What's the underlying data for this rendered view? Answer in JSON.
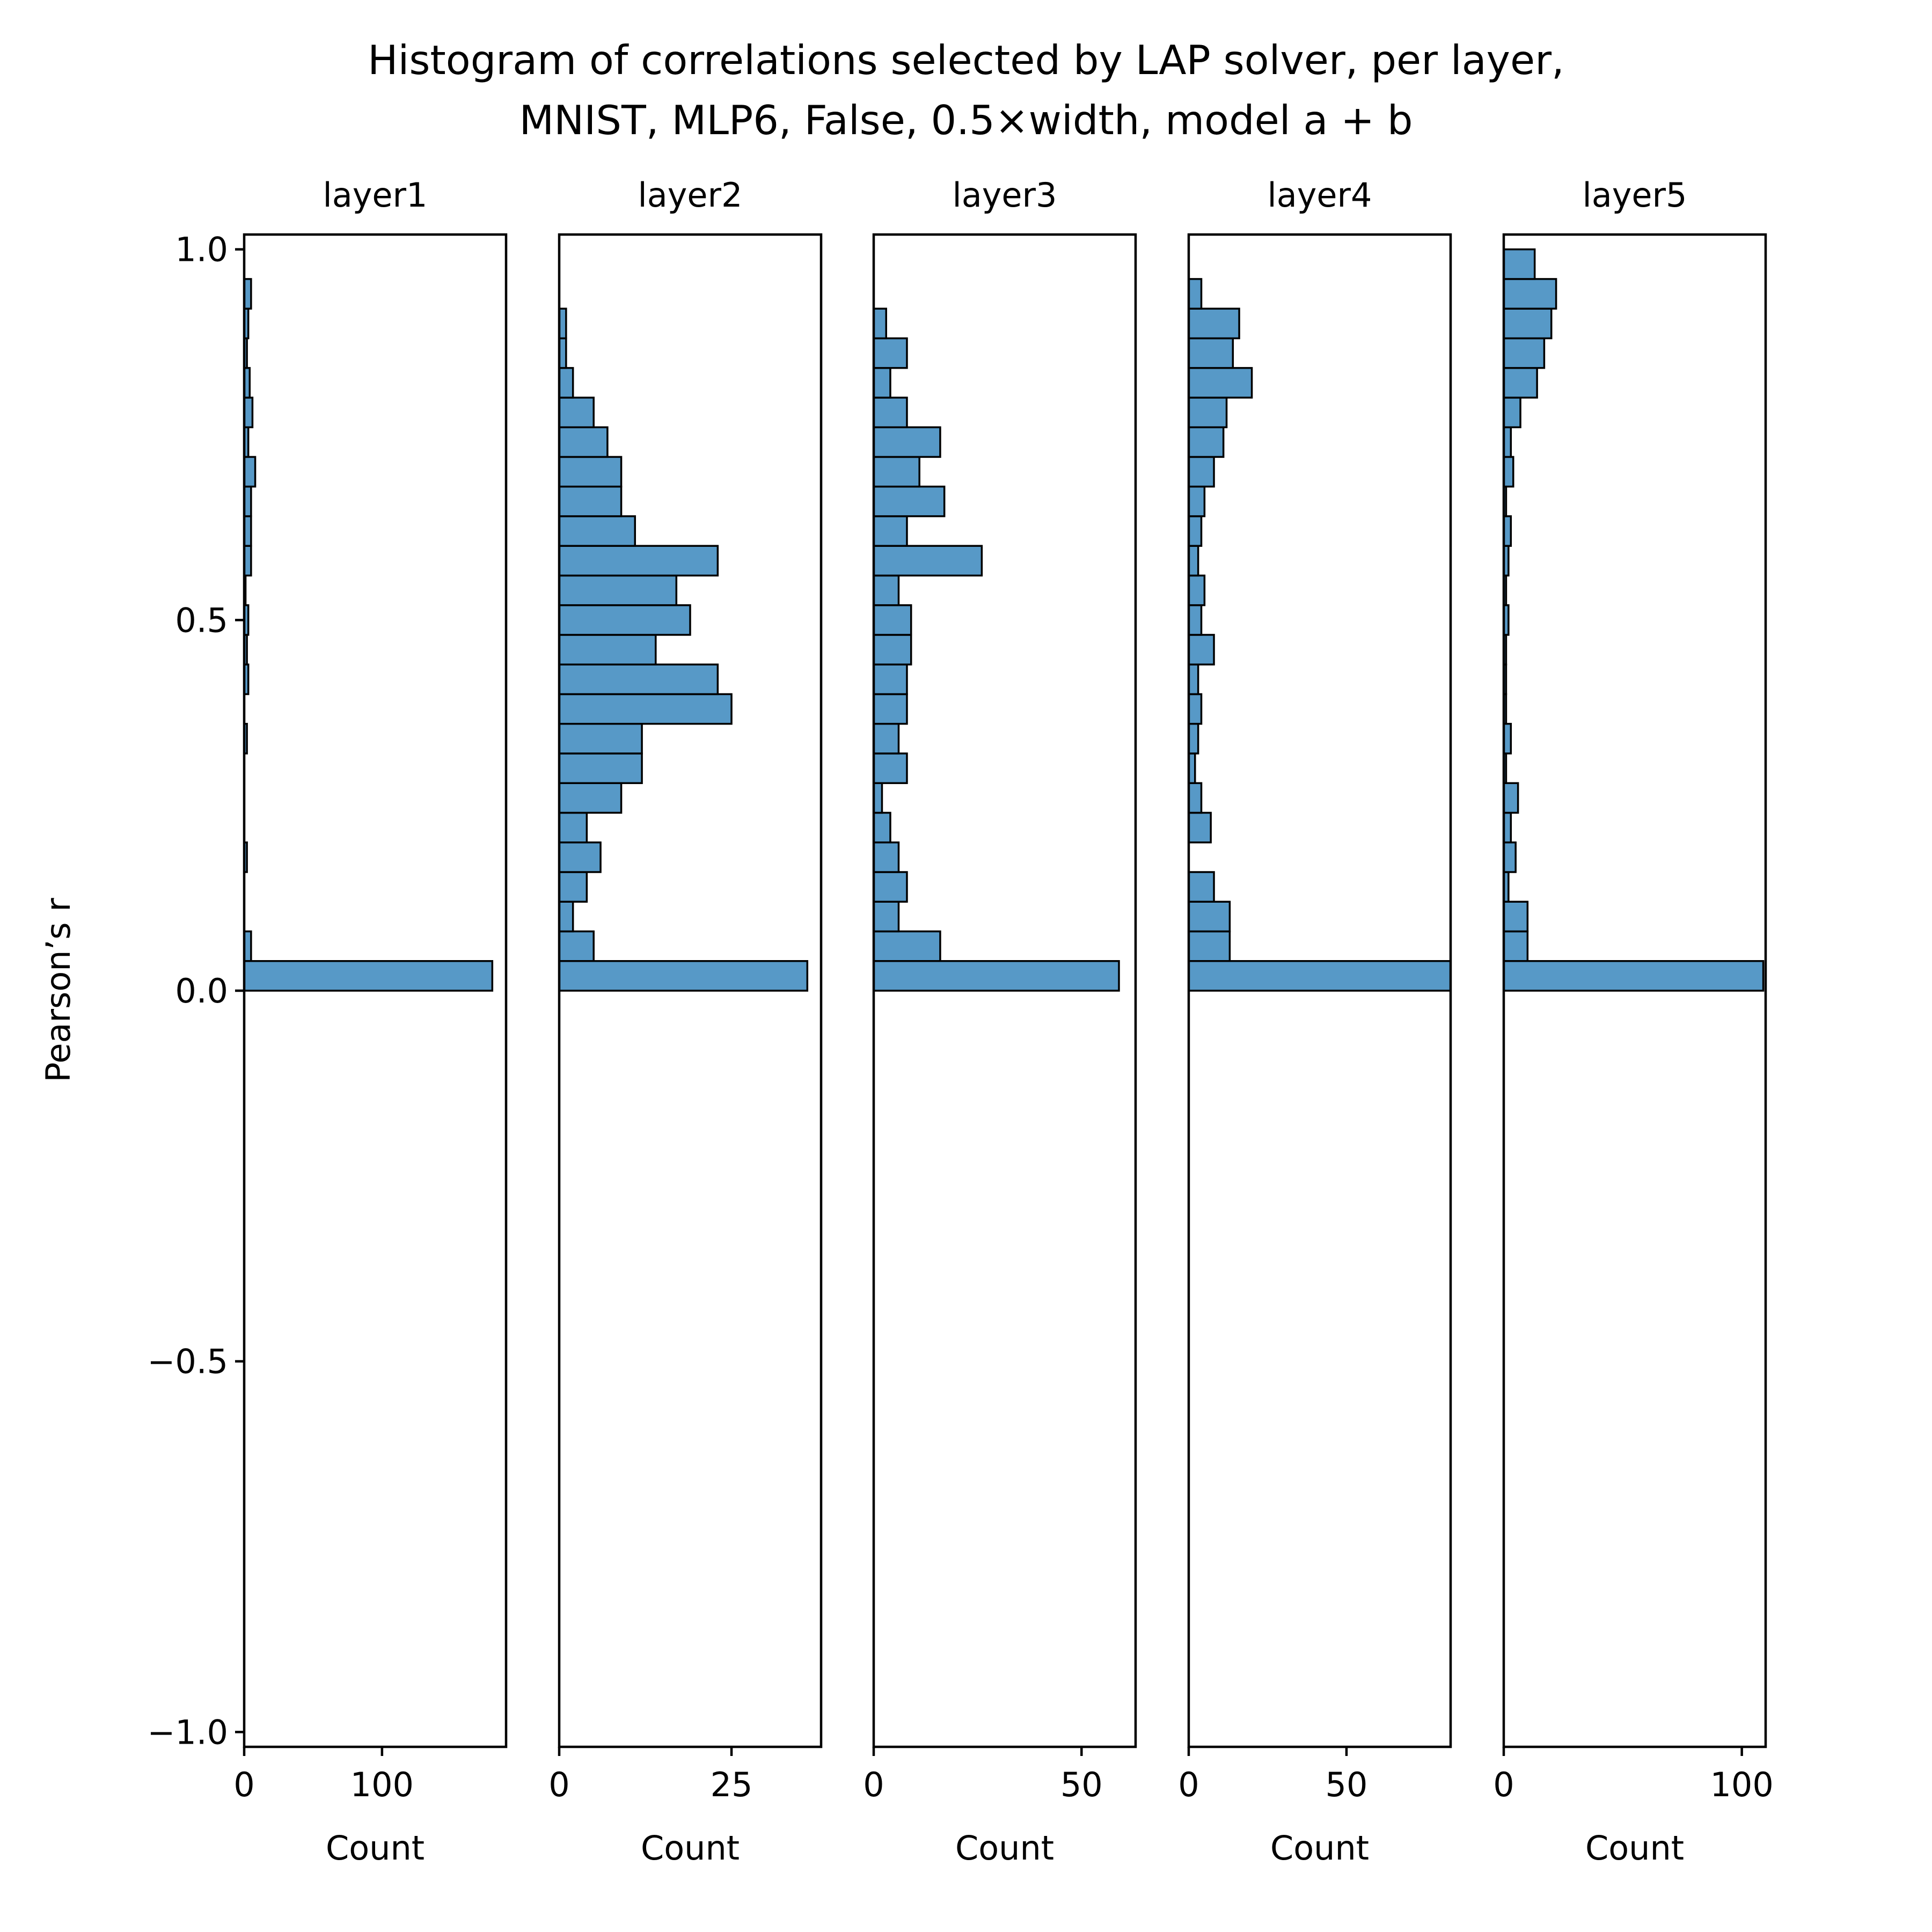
{
  "chart_data": {
    "type": "bar",
    "orientation": "horizontal",
    "title": "Histogram of correlations selected by LAP solver, per  layer,",
    "subtitle": "MNIST, MLP6, False, 0.5×width, model a + b",
    "ylabel": "Pearson’s r",
    "xlabel": "Count",
    "ylim": [
      -1.02,
      1.02
    ],
    "yticks": [
      1.0,
      0.5,
      0.0,
      -0.5,
      -1.0
    ],
    "ytick_labels": [
      "1.0",
      "0.5",
      "0.0",
      "−0.5",
      "−1.0"
    ],
    "bin_width": 0.04,
    "bin_starts": [
      0.0,
      0.04,
      0.08,
      0.12,
      0.16,
      0.2,
      0.24,
      0.28,
      0.32,
      0.36,
      0.4,
      0.44,
      0.48,
      0.52,
      0.56,
      0.6,
      0.64,
      0.68,
      0.72,
      0.76,
      0.8,
      0.84,
      0.88,
      0.92,
      0.96
    ],
    "bar_color": "#5799c7",
    "edge_color": "#000000",
    "grid": false,
    "legend": "none",
    "panels": [
      {
        "title": "layer1",
        "xlim": [
          0,
          190
        ],
        "xticks": [
          0,
          100
        ],
        "xtick_labels": [
          "0",
          "100"
        ],
        "counts": [
          180,
          5,
          0,
          0,
          2,
          0,
          0,
          0,
          2,
          0,
          3,
          2,
          3,
          1,
          5,
          5,
          5,
          8,
          3,
          6,
          4,
          2,
          3,
          5,
          0
        ]
      },
      {
        "title": "layer2",
        "xlim": [
          0,
          38
        ],
        "xticks": [
          0,
          25
        ],
        "xtick_labels": [
          "0",
          "25"
        ],
        "counts": [
          36,
          5,
          2,
          4,
          6,
          4,
          9,
          12,
          12,
          25,
          23,
          14,
          19,
          17,
          23,
          11,
          9,
          9,
          7,
          5,
          2,
          1,
          1,
          0,
          0
        ]
      },
      {
        "title": "layer3",
        "xlim": [
          0,
          63
        ],
        "xticks": [
          0,
          50
        ],
        "xtick_labels": [
          "0",
          "50"
        ],
        "counts": [
          59,
          16,
          6,
          8,
          6,
          4,
          2,
          8,
          6,
          8,
          8,
          9,
          9,
          6,
          26,
          8,
          17,
          11,
          16,
          8,
          4,
          8,
          3,
          0,
          0
        ]
      },
      {
        "title": "layer4",
        "xlim": [
          0,
          83
        ],
        "xticks": [
          0,
          50
        ],
        "xtick_labels": [
          "0",
          "50"
        ],
        "counts": [
          83,
          13,
          13,
          8,
          0,
          7,
          4,
          2,
          3,
          4,
          3,
          8,
          4,
          5,
          3,
          4,
          5,
          8,
          11,
          12,
          20,
          14,
          16,
          4,
          0
        ]
      },
      {
        "title": "layer5",
        "xlim": [
          0,
          110
        ],
        "xticks": [
          0,
          100
        ],
        "xtick_labels": [
          "0",
          "100"
        ],
        "counts": [
          109,
          10,
          10,
          2,
          5,
          3,
          6,
          1,
          3,
          1,
          1,
          1,
          2,
          1,
          2,
          3,
          1,
          4,
          3,
          7,
          14,
          17,
          20,
          22,
          13
        ]
      }
    ]
  }
}
